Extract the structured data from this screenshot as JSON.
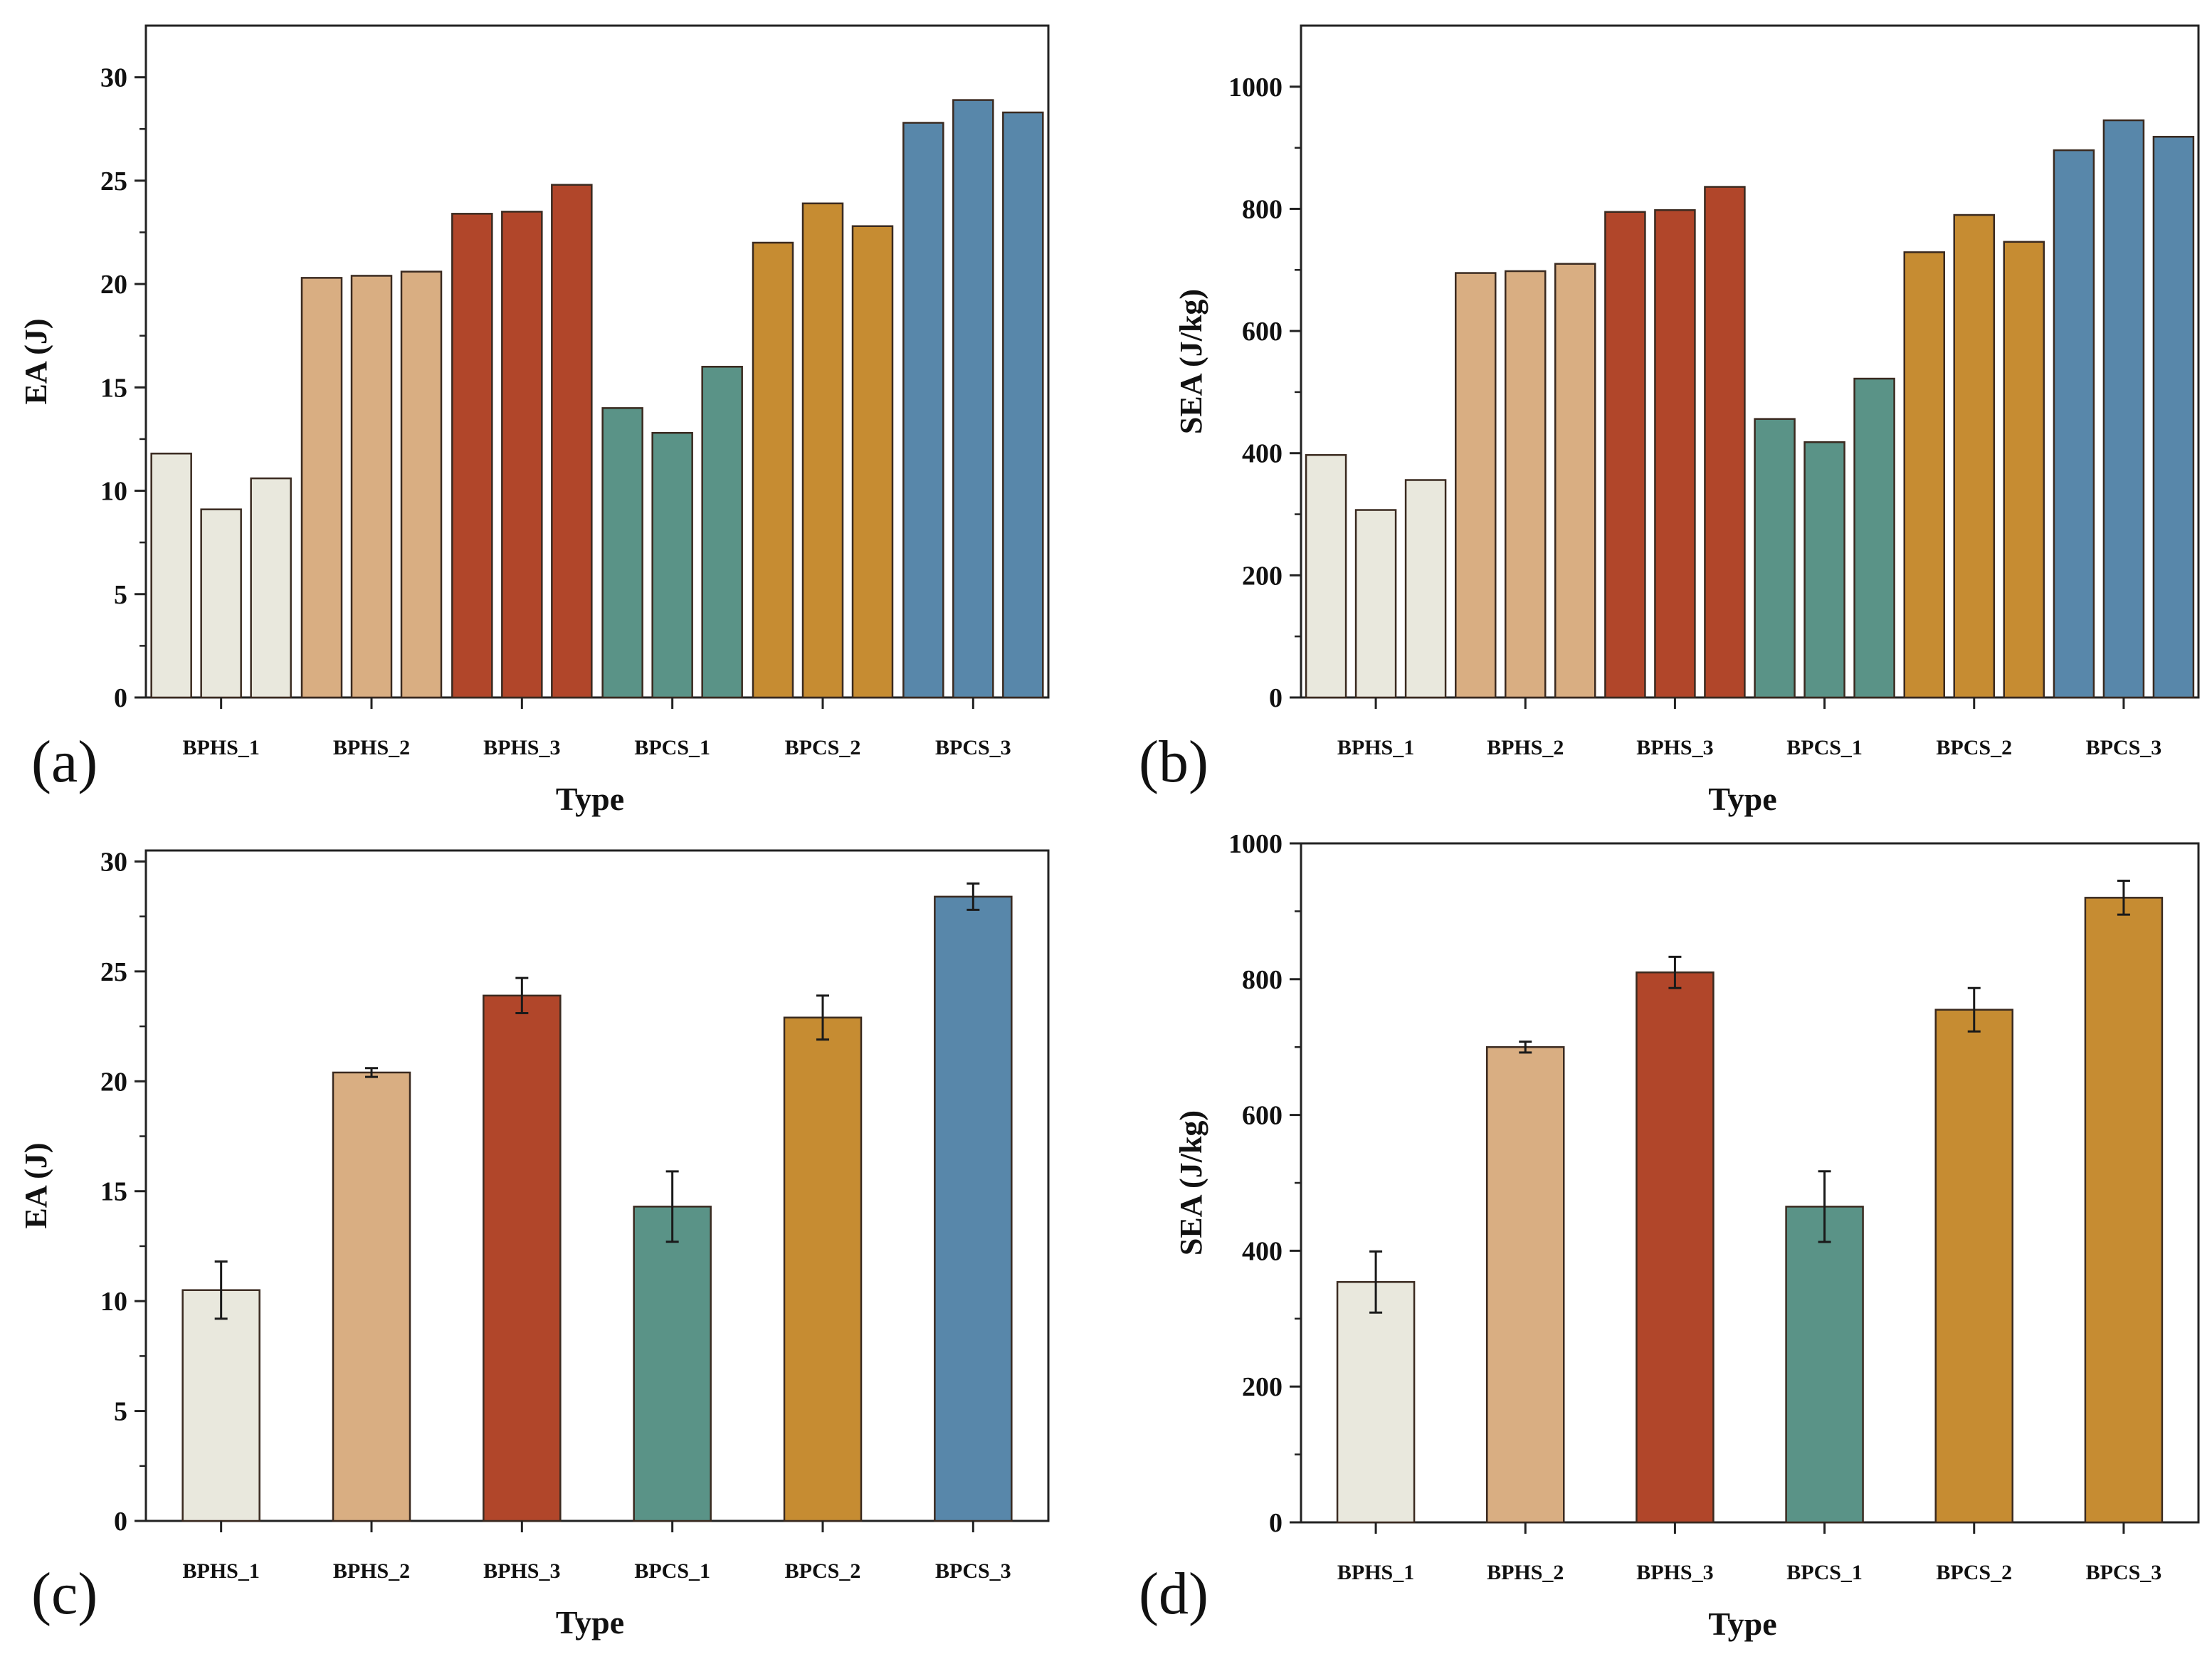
{
  "chart_data": [
    {
      "id": "a",
      "type": "bar",
      "panel_label": "(a)",
      "xlabel": "Type",
      "ylabel": "EA (J)",
      "ylim": [
        0,
        32.5
      ],
      "yticks": [
        0,
        5,
        10,
        15,
        20,
        25,
        30
      ],
      "grouped": true,
      "categories": [
        "BPHS_1",
        "BPHS_2",
        "BPHS_3",
        "BPCS_1",
        "BPCS_2",
        "BPCS_3"
      ],
      "colors": [
        "#e9e8dd",
        "#d9ae82",
        "#b1462a",
        "#5a9387",
        "#c68c32",
        "#5887aa"
      ],
      "groups": [
        {
          "name": "BPHS_1",
          "values": [
            11.8,
            9.1,
            10.6
          ]
        },
        {
          "name": "BPHS_2",
          "values": [
            20.3,
            20.4,
            20.6
          ]
        },
        {
          "name": "BPHS_3",
          "values": [
            23.4,
            23.5,
            24.8
          ]
        },
        {
          "name": "BPCS_1",
          "values": [
            14.0,
            12.8,
            16.0
          ]
        },
        {
          "name": "BPCS_2",
          "values": [
            22.0,
            23.9,
            22.8
          ]
        },
        {
          "name": "BPCS_3",
          "values": [
            27.8,
            28.9,
            28.3
          ]
        }
      ]
    },
    {
      "id": "b",
      "type": "bar",
      "panel_label": "(b)",
      "xlabel": "Type",
      "ylabel": "SEA (J/kg)",
      "ylim": [
        0,
        1100
      ],
      "yticks": [
        0,
        200,
        400,
        600,
        800,
        1000
      ],
      "grouped": true,
      "categories": [
        "BPHS_1",
        "BPHS_2",
        "BPHS_3",
        "BPCS_1",
        "BPCS_2",
        "BPCS_3"
      ],
      "colors": [
        "#e9e8dd",
        "#d9ae82",
        "#b1462a",
        "#5a9387",
        "#c68c32",
        "#5887aa"
      ],
      "groups": [
        {
          "name": "BPHS_1",
          "values": [
            397,
            307,
            356
          ]
        },
        {
          "name": "BPHS_2",
          "values": [
            695,
            698,
            710
          ]
        },
        {
          "name": "BPHS_3",
          "values": [
            795,
            798,
            836
          ]
        },
        {
          "name": "BPCS_1",
          "values": [
            456,
            418,
            522
          ]
        },
        {
          "name": "BPCS_2",
          "values": [
            729,
            790,
            746
          ]
        },
        {
          "name": "BPCS_3",
          "values": [
            896,
            945,
            918
          ]
        }
      ]
    },
    {
      "id": "c",
      "type": "bar",
      "panel_label": "(c)",
      "xlabel": "Type",
      "ylabel": "EA (J)",
      "ylim": [
        0,
        30.5
      ],
      "yticks": [
        0,
        5,
        10,
        15,
        20,
        25,
        30
      ],
      "grouped": false,
      "categories": [
        "BPHS_1",
        "BPHS_2",
        "BPHS_3",
        "BPCS_1",
        "BPCS_2",
        "BPCS_3"
      ],
      "colors": [
        "#e9e8dd",
        "#d9ae82",
        "#b1462a",
        "#5a9387",
        "#c68c32",
        "#5887aa"
      ],
      "values": [
        10.5,
        20.4,
        23.9,
        14.3,
        22.9,
        28.4
      ],
      "errors": [
        1.3,
        0.2,
        0.8,
        1.6,
        1.0,
        0.6
      ]
    },
    {
      "id": "d",
      "type": "bar",
      "panel_label": "(d)",
      "xlabel": "Type",
      "ylabel": "SEA (J/kg)",
      "ylim": [
        0,
        1000
      ],
      "yticks": [
        0,
        200,
        400,
        600,
        800,
        1000
      ],
      "grouped": false,
      "categories": [
        "BPHS_1",
        "BPHS_2",
        "BPHS_3",
        "BPCS_1",
        "BPCS_2",
        "BPCS_3"
      ],
      "colors": [
        "#e9e8dd",
        "#d9ae82",
        "#b1462a",
        "#5a9387",
        "#c68c32",
        "#c68c32"
      ],
      "values": [
        354,
        700,
        810,
        465,
        755,
        920
      ],
      "errors": [
        45,
        8,
        23,
        52,
        32,
        25
      ]
    }
  ]
}
